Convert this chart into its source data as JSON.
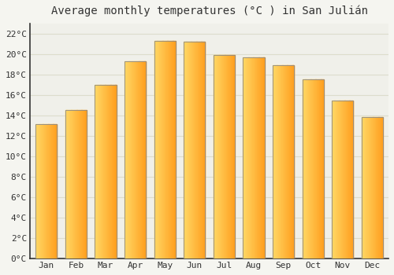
{
  "title": "Average monthly temperatures (°C ) in San Julián",
  "months": [
    "Jan",
    "Feb",
    "Mar",
    "Apr",
    "May",
    "Jun",
    "Jul",
    "Aug",
    "Sep",
    "Oct",
    "Nov",
    "Dec"
  ],
  "values": [
    13.1,
    14.5,
    17.0,
    19.3,
    21.3,
    21.2,
    19.9,
    19.7,
    18.9,
    17.5,
    15.4,
    13.8
  ],
  "bar_color_left": "#FFD966",
  "bar_color_right": "#FFA020",
  "bar_edge_color": "#888888",
  "background_color": "#F5F5F0",
  "plot_bg_color": "#F0F0EA",
  "grid_color": "#DDDDCC",
  "axis_color": "#333333",
  "ylim": [
    0,
    23
  ],
  "ytick_step": 2,
  "title_fontsize": 10,
  "tick_fontsize": 8,
  "font_family": "monospace"
}
